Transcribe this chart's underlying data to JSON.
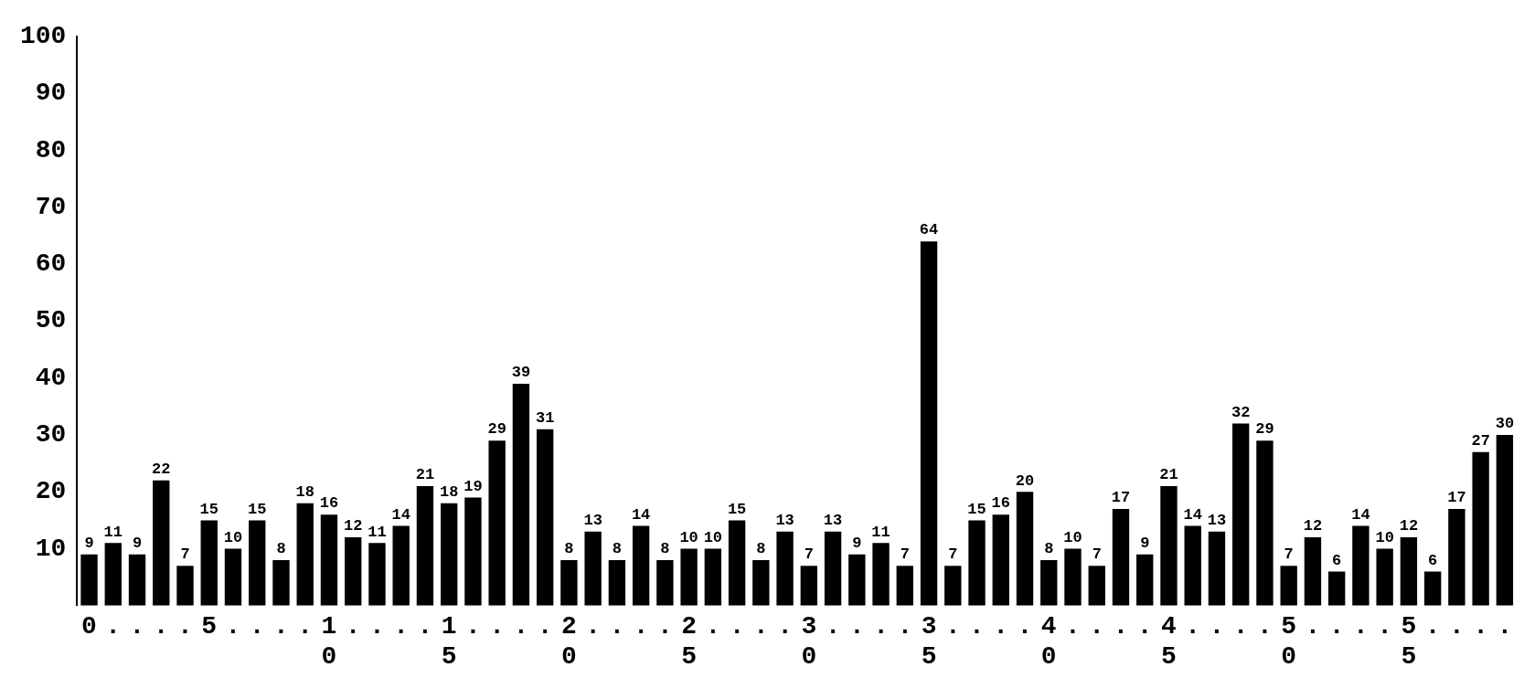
{
  "chart_data": {
    "type": "bar",
    "categories": [
      "0",
      ".",
      ".",
      ".",
      ".",
      "5",
      ".",
      ".",
      ".",
      ".",
      "10",
      ".",
      ".",
      ".",
      ".",
      "15",
      ".",
      ".",
      ".",
      ".",
      "20",
      ".",
      ".",
      ".",
      ".",
      "25",
      ".",
      ".",
      ".",
      ".",
      "30",
      ".",
      ".",
      ".",
      ".",
      "35",
      ".",
      ".",
      ".",
      ".",
      "40",
      ".",
      ".",
      ".",
      ".",
      "45",
      ".",
      ".",
      ".",
      ".",
      "50",
      ".",
      ".",
      ".",
      ".",
      "55",
      ".",
      ".",
      ".",
      "."
    ],
    "values": [
      9,
      11,
      9,
      22,
      7,
      15,
      10,
      15,
      8,
      18,
      16,
      12,
      11,
      14,
      21,
      18,
      19,
      29,
      39,
      31,
      8,
      13,
      8,
      14,
      8,
      10,
      10,
      15,
      8,
      13,
      7,
      13,
      9,
      11,
      7,
      64,
      7,
      15,
      16,
      20,
      8,
      10,
      7,
      17,
      9,
      21,
      14,
      13,
      32,
      29,
      7,
      12,
      6,
      14,
      10,
      12,
      6,
      17,
      27,
      30
    ],
    "color": "#000000",
    "ylim": [
      0,
      100
    ],
    "yticks": [
      10,
      20,
      30,
      40,
      50,
      60,
      70,
      80,
      90,
      100
    ],
    "data_labels": true,
    "grid": false,
    "legend": false
  }
}
